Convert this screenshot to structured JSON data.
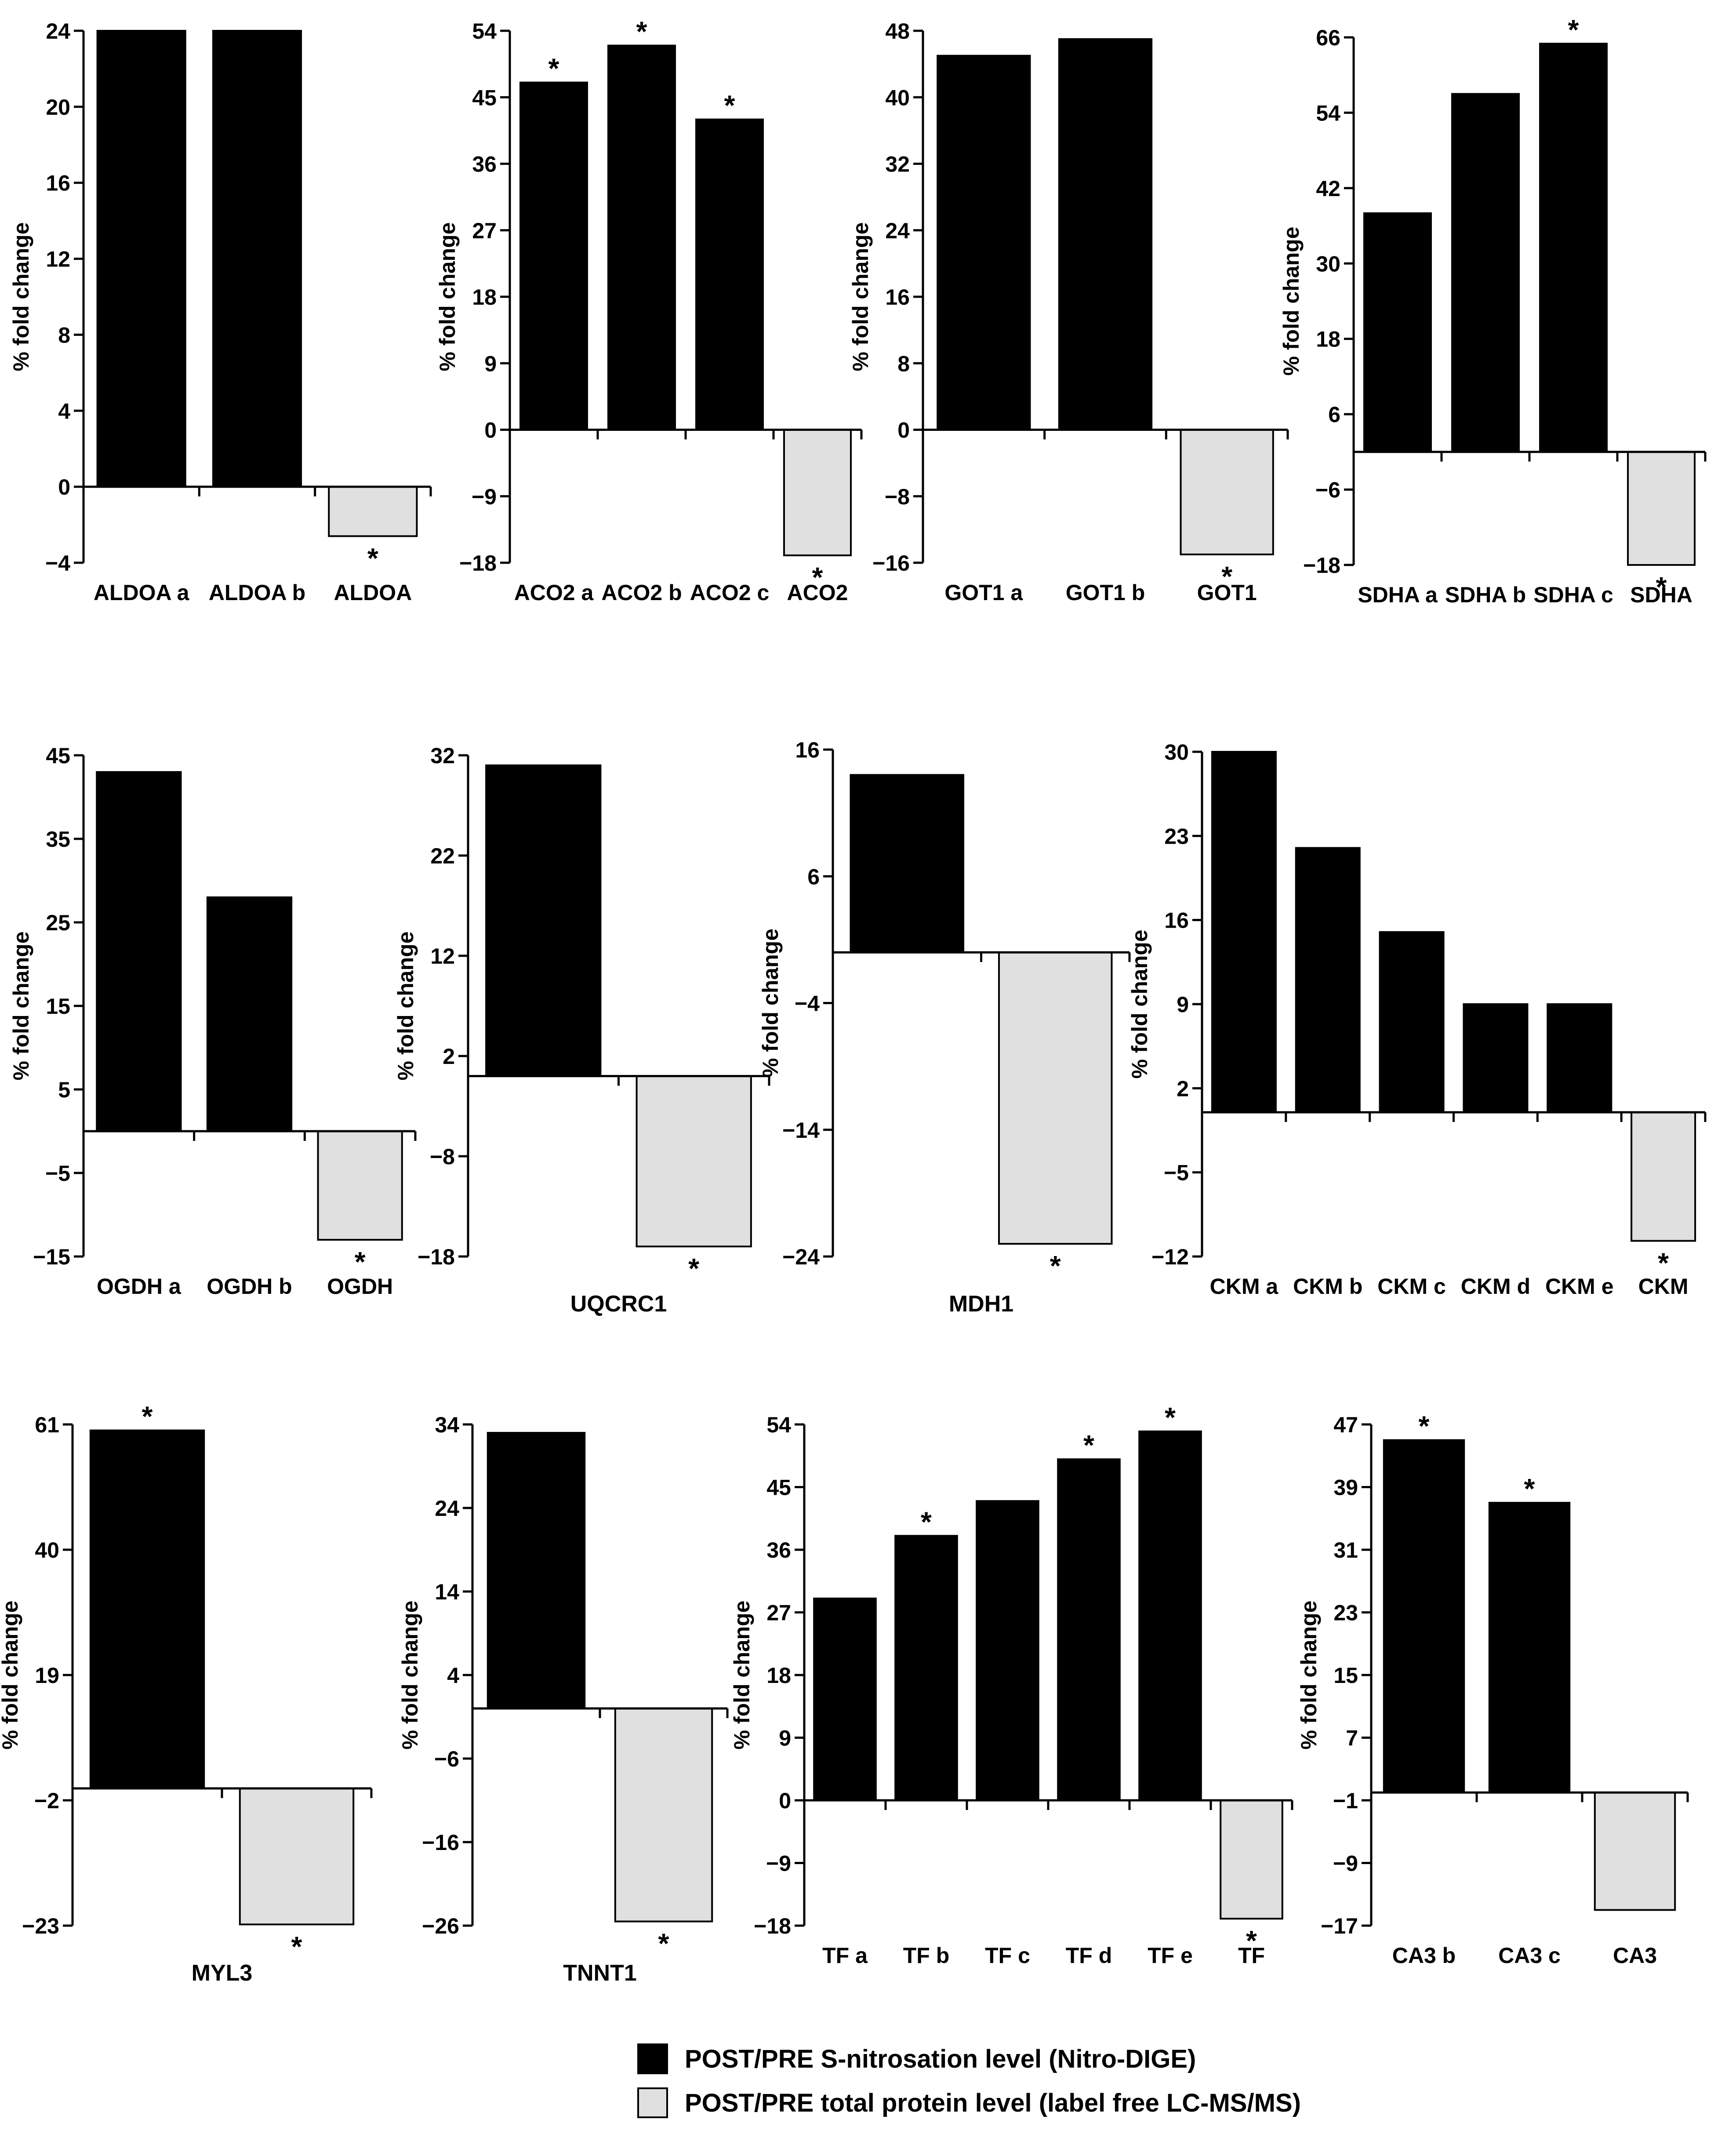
{
  "colors": {
    "nitro": "#000000",
    "total": "#e0e0e0",
    "axis": "#000000"
  },
  "legend": {
    "nitro_label": "POST/PRE S-nitrosation level (Nitro-DIGE)",
    "total_label": "POST/PRE total protein level (label free LC-MS/MS)"
  },
  "chart_data": [
    {
      "type": "bar",
      "id": "aldoa",
      "ylabel": "% fold change",
      "ylim": [
        -4,
        24
      ],
      "ticks": [
        "24",
        "20",
        "16",
        "12",
        "8",
        "4",
        "0",
        "−4"
      ],
      "categories": [
        "ALDOA a",
        "ALDOA b",
        "ALDOA"
      ],
      "values": [
        24,
        24,
        -2.6
      ],
      "kinds": [
        "nitro",
        "nitro",
        "total"
      ],
      "significant": [
        false,
        false,
        true
      ]
    },
    {
      "type": "bar",
      "id": "aco2",
      "ylabel": "% fold change",
      "ylim": [
        -18,
        54
      ],
      "ticks": [
        "54",
        "45",
        "36",
        "27",
        "18",
        "9",
        "0",
        "−9",
        "−18"
      ],
      "categories": [
        "ACO2 a",
        "ACO2 b",
        "ACO2 c",
        "ACO2"
      ],
      "values": [
        47,
        52,
        42,
        -17
      ],
      "kinds": [
        "nitro",
        "nitro",
        "nitro",
        "total"
      ],
      "significant": [
        true,
        true,
        true,
        true
      ]
    },
    {
      "type": "bar",
      "id": "got1",
      "ylabel": "% fold change",
      "ylim": [
        -16,
        48
      ],
      "ticks": [
        "48",
        "40",
        "32",
        "24",
        "16",
        "8",
        "0",
        "−8",
        "−16"
      ],
      "categories": [
        "GOT1 a",
        "GOT1 b",
        "GOT1"
      ],
      "values": [
        45,
        47,
        -15
      ],
      "kinds": [
        "nitro",
        "nitro",
        "total"
      ],
      "significant": [
        false,
        false,
        true
      ]
    },
    {
      "type": "bar",
      "id": "sdha",
      "ylabel": "% fold change",
      "ylim": [
        -18,
        66
      ],
      "ticks": [
        "66",
        "54",
        "42",
        "30",
        "18",
        "6",
        "−6",
        "−18"
      ],
      "categories": [
        "SDHA a",
        "SDHA b",
        "SDHA c",
        "SDHA"
      ],
      "values": [
        38,
        57,
        65,
        -18
      ],
      "kinds": [
        "nitro",
        "nitro",
        "nitro",
        "total"
      ],
      "significant": [
        false,
        false,
        true,
        true
      ]
    },
    {
      "type": "bar",
      "id": "ogdh",
      "ylabel": "% fold change",
      "ylim": [
        -15,
        45
      ],
      "ticks": [
        "45",
        "35",
        "25",
        "15",
        "5",
        "−5",
        "−15"
      ],
      "categories": [
        "OGDH a",
        "OGDH b",
        "OGDH"
      ],
      "values": [
        43,
        28,
        -13
      ],
      "kinds": [
        "nitro",
        "nitro",
        "total"
      ],
      "significant": [
        false,
        false,
        true
      ]
    },
    {
      "type": "bar",
      "id": "uqcrc1",
      "ylabel": "% fold change",
      "ylim": [
        -18,
        32
      ],
      "name": "UQCRC1",
      "ticks": [
        "32",
        "22",
        "12",
        "2",
        "−8",
        "−18"
      ],
      "categories": [
        "",
        ""
      ],
      "values": [
        31,
        -17
      ],
      "kinds": [
        "nitro",
        "total"
      ],
      "significant": [
        false,
        true
      ]
    },
    {
      "type": "bar",
      "id": "mdh1",
      "ylabel": "% fold change",
      "ylim": [
        -24,
        16
      ],
      "name": "MDH1",
      "ticks": [
        "16",
        "6",
        "−4",
        "−14",
        "−24"
      ],
      "categories": [
        "",
        ""
      ],
      "values": [
        14,
        -23
      ],
      "kinds": [
        "nitro",
        "total"
      ],
      "significant": [
        false,
        true
      ]
    },
    {
      "type": "bar",
      "id": "ckm",
      "ylabel": "% fold change",
      "ylim": [
        -12,
        30
      ],
      "ticks": [
        "30",
        "23",
        "16",
        "9",
        "2",
        "−5",
        "−12"
      ],
      "categories": [
        "CKM a",
        "CKM b",
        "CKM c",
        "CKM d",
        "CKM e",
        "CKM"
      ],
      "values": [
        30,
        22,
        15,
        9,
        9,
        -10.7
      ],
      "kinds": [
        "nitro",
        "nitro",
        "nitro",
        "nitro",
        "nitro",
        "total"
      ],
      "significant": [
        false,
        false,
        false,
        false,
        false,
        true
      ]
    },
    {
      "type": "bar",
      "id": "myl3",
      "ylabel": "% fold change",
      "ylim": [
        -23,
        61
      ],
      "name": "MYL3",
      "ticks": [
        "61",
        "40",
        "19",
        "−2",
        "−23"
      ],
      "categories": [
        "",
        ""
      ],
      "values": [
        60,
        -22.8
      ],
      "kinds": [
        "nitro",
        "total"
      ],
      "significant": [
        true,
        true
      ]
    },
    {
      "type": "bar",
      "id": "tnnt1",
      "ylabel": "% fold change",
      "ylim": [
        -26,
        34
      ],
      "name": "TNNT1",
      "ticks": [
        "34",
        "24",
        "14",
        "4",
        "−6",
        "−16",
        "−26"
      ],
      "categories": [
        "",
        ""
      ],
      "values": [
        33,
        -25.5
      ],
      "kinds": [
        "nitro",
        "total"
      ],
      "significant": [
        false,
        true
      ]
    },
    {
      "type": "bar",
      "id": "tf",
      "ylabel": "% fold change",
      "ylim": [
        -18,
        54
      ],
      "ticks": [
        "54",
        "45",
        "36",
        "27",
        "18",
        "9",
        "0",
        "−9",
        "−18"
      ],
      "categories": [
        "TF a",
        "TF b",
        "TF c",
        "TF d",
        "TF e",
        "TF"
      ],
      "values": [
        29,
        38,
        43,
        49,
        53,
        -17
      ],
      "kinds": [
        "nitro",
        "nitro",
        "nitro",
        "nitro",
        "nitro",
        "total"
      ],
      "significant": [
        false,
        true,
        false,
        true,
        true,
        true
      ]
    },
    {
      "type": "bar",
      "id": "ca3",
      "ylabel": "% fold change",
      "ylim": [
        -17,
        47
      ],
      "ticks": [
        "47",
        "39",
        "31",
        "23",
        "15",
        "7",
        "−1",
        "−9",
        "−17"
      ],
      "categories": [
        "CA3 b",
        "CA3 c",
        "CA3"
      ],
      "values": [
        45,
        37,
        -15
      ],
      "kinds": [
        "nitro",
        "nitro",
        "total"
      ],
      "significant": [
        true,
        true,
        false
      ]
    }
  ]
}
